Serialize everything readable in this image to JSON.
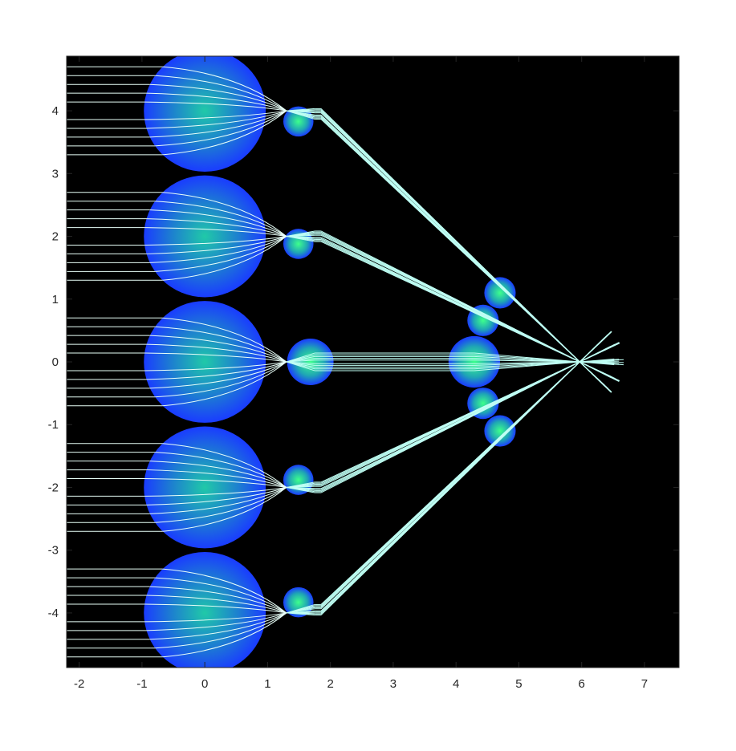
{
  "chart_data": {
    "type": "scatter",
    "title": "",
    "xlabel": "",
    "ylabel": "",
    "xlim": [
      -2.2,
      7.55
    ],
    "ylim": [
      -4.87,
      4.87
    ],
    "x_ticks": [
      -2,
      -1,
      0,
      1,
      2,
      3,
      4,
      5,
      6,
      7
    ],
    "y_ticks": [
      -4,
      -3,
      -2,
      -1,
      0,
      1,
      2,
      3,
      4
    ],
    "grid": false,
    "legend": "none",
    "background": "#000000",
    "colors": {
      "ball_edge": "#1a3cff",
      "ball_mid": "#1d7fd0",
      "ball_center": "#20c9a8",
      "small_center": "#3dff8c",
      "ray": "#bffff4",
      "ray_left": "#e8fff8",
      "axis": "#262626"
    },
    "series": [
      {
        "name": "",
        "kind": "large_spheres",
        "points": [
          {
            "x": 0,
            "y": 4,
            "r": 0.97
          },
          {
            "x": 0,
            "y": 2,
            "r": 0.97
          },
          {
            "x": 0,
            "y": 0,
            "r": 0.97
          },
          {
            "x": 0,
            "y": -2,
            "r": 0.97
          },
          {
            "x": 0,
            "y": -4,
            "r": 0.97
          }
        ]
      },
      {
        "name": "",
        "kind": "small_spheres",
        "points": [
          {
            "x": 1.49,
            "y": 3.83,
            "r": 0.24
          },
          {
            "x": 1.49,
            "y": 1.88,
            "r": 0.24
          },
          {
            "x": 1.68,
            "y": 0.0,
            "r": 0.37
          },
          {
            "x": 1.49,
            "y": -1.88,
            "r": 0.24
          },
          {
            "x": 1.49,
            "y": -3.83,
            "r": 0.24
          },
          {
            "x": 4.29,
            "y": 0.0,
            "r": 0.41
          },
          {
            "x": 4.43,
            "y": 0.66,
            "r": 0.25
          },
          {
            "x": 4.43,
            "y": -0.66,
            "r": 0.25
          },
          {
            "x": 4.7,
            "y": 1.1,
            "r": 0.25
          },
          {
            "x": 4.7,
            "y": -1.1,
            "r": 0.25
          }
        ]
      },
      {
        "name": "",
        "kind": "rays",
        "focus_1": [
          {
            "x": 1.3,
            "y": 4
          },
          {
            "x": 1.3,
            "y": 2
          },
          {
            "x": 1.3,
            "y": 0
          },
          {
            "x": 1.3,
            "y": -2
          },
          {
            "x": 1.3,
            "y": -4
          }
        ],
        "ray_offsets": [
          -0.7,
          -0.56,
          -0.42,
          -0.28,
          -0.14,
          0.14,
          0.28,
          0.42,
          0.56,
          0.7
        ],
        "focus_2": {
          "x": 5.97,
          "y": 0
        },
        "x_start": -2.2,
        "x_end_max": 6.68
      }
    ]
  }
}
